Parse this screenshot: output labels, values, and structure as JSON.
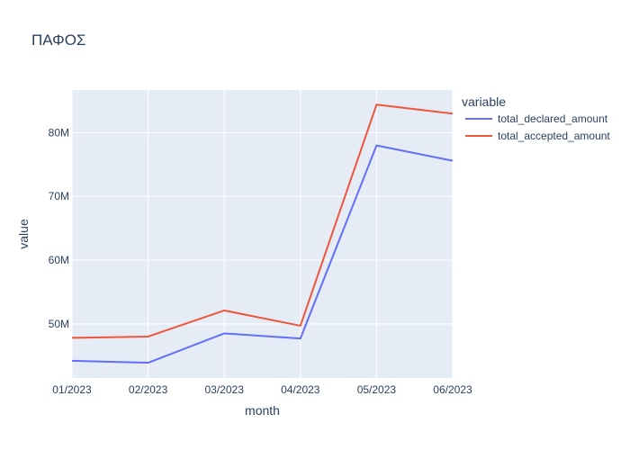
{
  "chart_data": {
    "type": "line",
    "title": "ΠΑΦΟΣ",
    "xlabel": "month",
    "ylabel": "value",
    "categories": [
      "01/2023",
      "02/2023",
      "03/2023",
      "04/2023",
      "05/2023",
      "06/2023"
    ],
    "yticks": [
      {
        "value": 50000000,
        "label": "50M"
      },
      {
        "value": 60000000,
        "label": "60M"
      },
      {
        "value": 70000000,
        "label": "70M"
      },
      {
        "value": 80000000,
        "label": "80M"
      }
    ],
    "ylim": [
      41500000,
      86700000
    ],
    "legend_title": "variable",
    "legend_position": "right",
    "grid": true,
    "series": [
      {
        "name": "total_declared_amount",
        "color": "#636efa",
        "values": [
          44200000,
          43900000,
          48500000,
          47700000,
          78000000,
          75600000
        ]
      },
      {
        "name": "total_accepted_amount",
        "color": "#ef553b",
        "values": [
          47800000,
          48000000,
          52100000,
          49700000,
          84400000,
          83000000
        ]
      }
    ]
  }
}
